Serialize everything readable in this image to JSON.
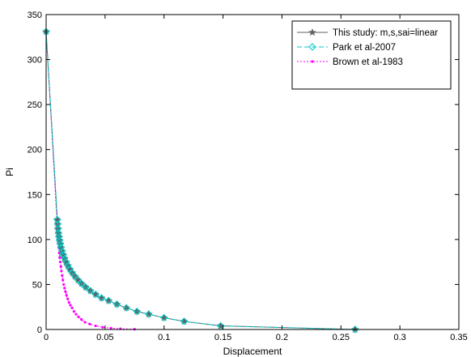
{
  "chart_data": {
    "type": "line",
    "title": "",
    "xlabel": "Displacement",
    "ylabel": "Pi",
    "xlim": [
      0,
      0.35
    ],
    "ylim": [
      0,
      350
    ],
    "xticks": [
      0,
      0.05,
      0.1,
      0.15,
      0.2,
      0.25,
      0.3,
      0.35
    ],
    "yticks": [
      0,
      50,
      100,
      150,
      200,
      250,
      300,
      350
    ],
    "xtick_labels": [
      "0",
      "0.05",
      "0.1",
      "0.15",
      "0.2",
      "0.25",
      "0.3",
      "0.35"
    ],
    "ytick_labels": [
      "0",
      "50",
      "100",
      "150",
      "200",
      "250",
      "300",
      "350"
    ],
    "grid": false,
    "legend_position": "top-right",
    "series": [
      {
        "name": "This study: m,s,sai=linear",
        "color": "#606060",
        "line_style": "solid",
        "marker": "star",
        "x": [
          0.0,
          0.0095,
          0.0098,
          0.0101,
          0.0105,
          0.0109,
          0.0114,
          0.012,
          0.0127,
          0.0135,
          0.0145,
          0.0156,
          0.0169,
          0.0184,
          0.0201,
          0.0221,
          0.0244,
          0.027,
          0.03,
          0.0335,
          0.0375,
          0.042,
          0.047,
          0.053,
          0.06,
          0.068,
          0.077,
          0.087,
          0.1,
          0.117,
          0.148,
          0.262
        ],
        "y": [
          331,
          122,
          117,
          112,
          107,
          103,
          99,
          95,
          91,
          87,
          83,
          79,
          75,
          71,
          67,
          63,
          59,
          55,
          51,
          47,
          43,
          39,
          35,
          32,
          28,
          24,
          20,
          17,
          13,
          9,
          4,
          0
        ]
      },
      {
        "name": "Park et al-2007",
        "color": "#00c8c8",
        "line_style": "dashed",
        "marker": "diamond",
        "x": [
          0.0,
          0.0095,
          0.0098,
          0.0101,
          0.0105,
          0.0109,
          0.0114,
          0.012,
          0.0127,
          0.0135,
          0.0145,
          0.0156,
          0.0169,
          0.0184,
          0.0201,
          0.0221,
          0.0244,
          0.027,
          0.03,
          0.0335,
          0.0375,
          0.042,
          0.047,
          0.053,
          0.06,
          0.068,
          0.077,
          0.087,
          0.1,
          0.117,
          0.148,
          0.262
        ],
        "y": [
          331,
          122,
          117,
          112,
          107,
          103,
          99,
          95,
          91,
          87,
          83,
          79,
          75,
          71,
          67,
          63,
          59,
          55,
          51,
          47,
          43,
          39,
          35,
          32,
          28,
          24,
          20,
          17,
          13,
          9,
          4,
          0
        ]
      },
      {
        "name": "Brown et al-1983",
        "color": "#ff00ff",
        "line_style": "dotted",
        "marker": "dot",
        "x": [
          0.0,
          0.0095,
          0.0099,
          0.0103,
          0.0107,
          0.0111,
          0.0115,
          0.012,
          0.0125,
          0.013,
          0.0136,
          0.0142,
          0.0149,
          0.0156,
          0.0164,
          0.0173,
          0.0183,
          0.0194,
          0.0206,
          0.022,
          0.0236,
          0.0254,
          0.0275,
          0.03,
          0.033,
          0.037,
          0.042,
          0.048,
          0.055,
          0.063,
          0.075
        ],
        "y": [
          331,
          112,
          104,
          97,
          91,
          85,
          80,
          75,
          70,
          65,
          60,
          55,
          50,
          46,
          42,
          38,
          34,
          30,
          27,
          24,
          20,
          17,
          14,
          11,
          8,
          6,
          4,
          2.5,
          1.5,
          0.8,
          0.3
        ]
      }
    ]
  }
}
